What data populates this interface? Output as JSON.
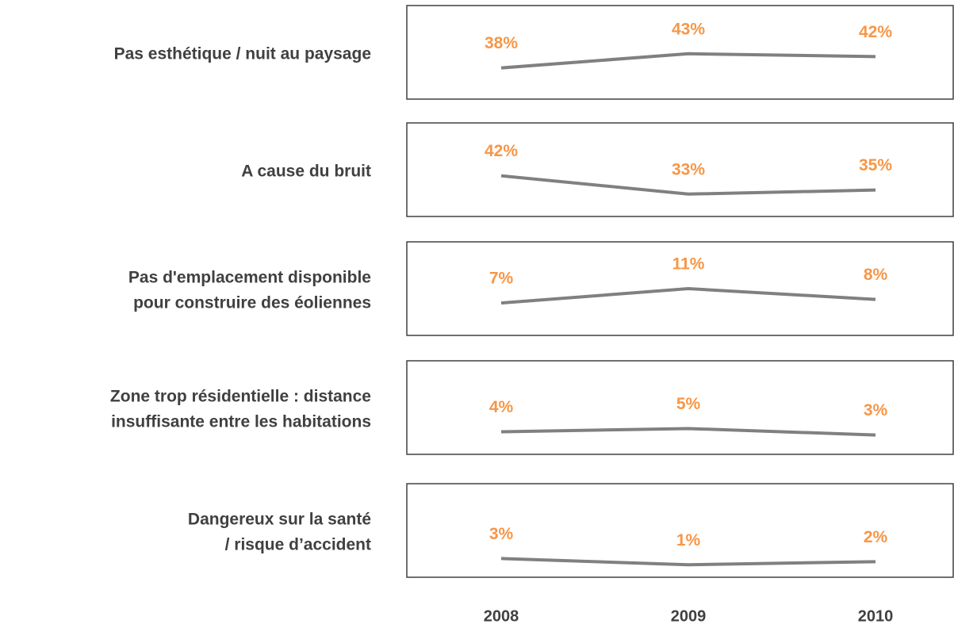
{
  "chart_data": [
    {
      "type": "line",
      "title": [
        "Pas esthétique / nuit au paysage"
      ],
      "values": [
        38,
        43,
        42
      ],
      "value_labels": [
        "38%",
        "43%",
        "42%"
      ],
      "ylim": [
        27,
        60
      ],
      "color": "#808080",
      "label_color": "#f79646"
    },
    {
      "type": "line",
      "title": [
        "A cause du bruit"
      ],
      "values": [
        42,
        33,
        35
      ],
      "value_labels": [
        "42%",
        "33%",
        "35%"
      ],
      "ylim": [
        22,
        68
      ],
      "color": "#808080",
      "label_color": "#f79646"
    },
    {
      "type": "line",
      "title": [
        "Pas d'emplacement disponible",
        "pour construire des éoliennes"
      ],
      "values": [
        7,
        11,
        8
      ],
      "value_labels": [
        "7%",
        "11%",
        "8%"
      ],
      "ylim": [
        -2,
        24
      ],
      "color": "#808080",
      "label_color": "#f79646"
    },
    {
      "type": "line",
      "title": [
        "Zone trop résidentielle : distance",
        "insuffisante entre les habitations"
      ],
      "values": [
        4,
        5,
        3
      ],
      "value_labels": [
        "4%",
        "5%",
        "3%"
      ],
      "ylim": [
        -3,
        26
      ],
      "color": "#808080",
      "label_color": "#f79646"
    },
    {
      "type": "line",
      "title": [
        "Dangereux sur la santé",
        "/ risque d’accident"
      ],
      "values": [
        3,
        1,
        2
      ],
      "value_labels": [
        "3%",
        "1%",
        "2%"
      ],
      "ylim": [
        -3,
        27
      ],
      "color": "#808080",
      "label_color": "#f79646",
      "categories": [
        "2008",
        "2009",
        "2010"
      ]
    }
  ]
}
